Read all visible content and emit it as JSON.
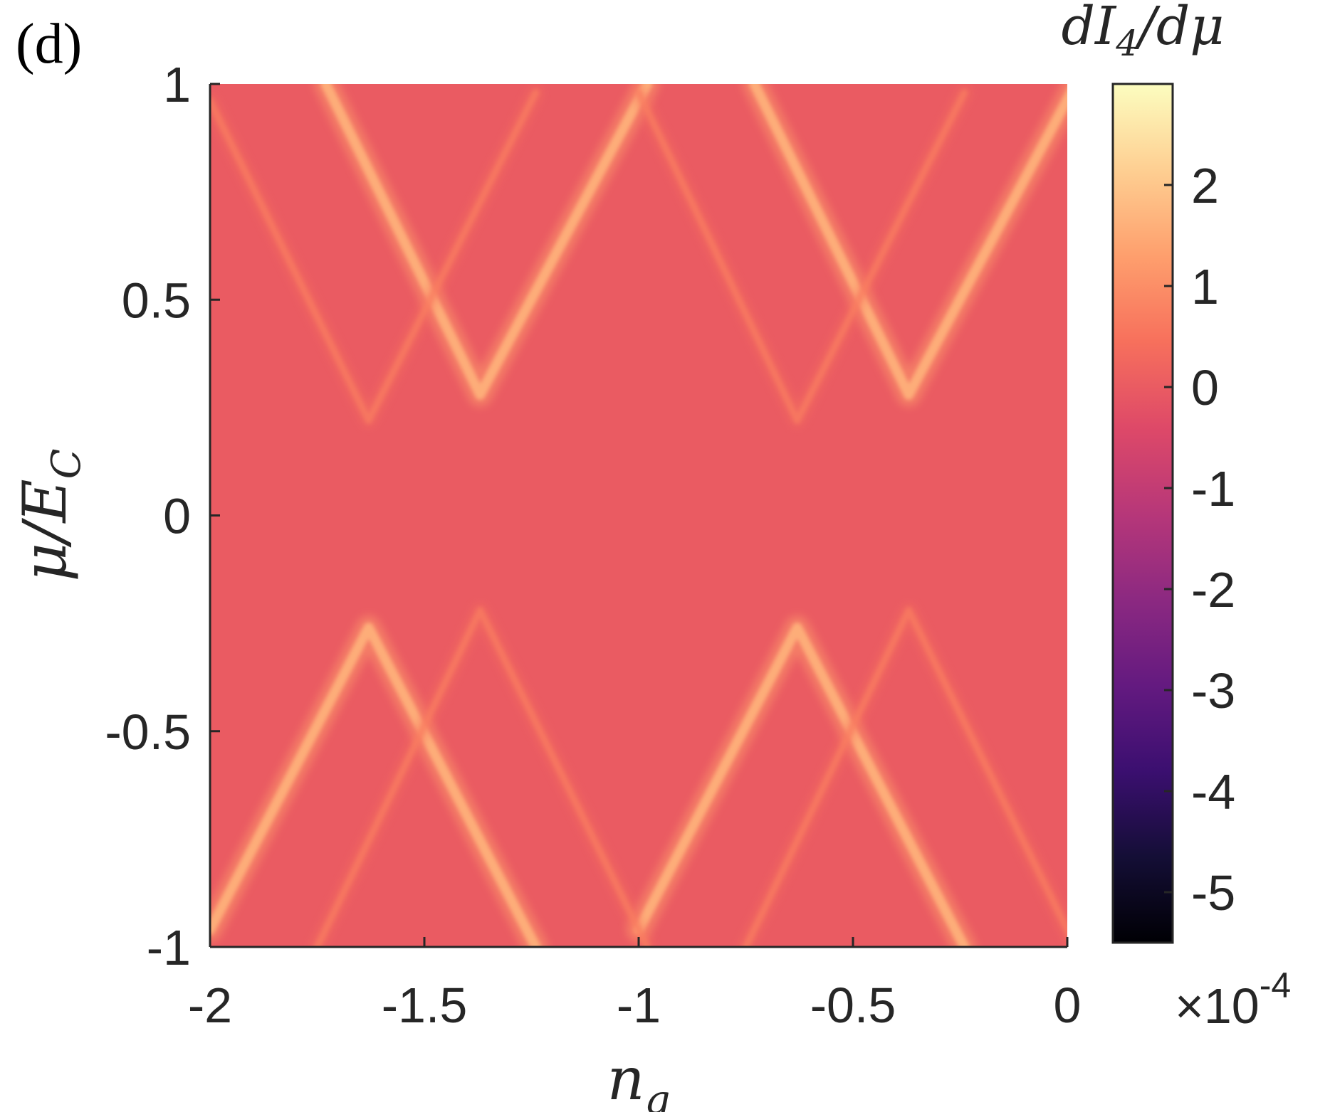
{
  "chart_data": {
    "type": "heatmap",
    "panel_label": "(d)",
    "xlabel": "n",
    "xlabel_sub": "g",
    "ylabel": "μ/E",
    "ylabel_sub": "C",
    "colorbar_title_parts": [
      "dI",
      "4",
      "/dμ"
    ],
    "colorbar_exponent": "×10",
    "colorbar_exponent_power": "-4",
    "xlim": [
      -2,
      0
    ],
    "ylim": [
      -1,
      1
    ],
    "clim": [
      -5.5,
      3
    ],
    "xticks": [
      -2,
      -1.5,
      -1,
      -0.5,
      0
    ],
    "xtick_labels": [
      "-2",
      "-1.5",
      "-1",
      "-0.5",
      "0"
    ],
    "yticks": [
      -1,
      -0.5,
      0,
      0.5,
      1
    ],
    "ytick_labels": [
      "-1",
      "-0.5",
      "0",
      "0.5",
      "1"
    ],
    "cticks": [
      -5,
      -4,
      -3,
      -2,
      -1,
      0,
      1,
      2
    ],
    "ctick_labels": [
      "-5",
      "-4",
      "-3",
      "-2",
      "-1",
      "0",
      "1",
      "2"
    ],
    "colormap": "magma",
    "background_value": 0,
    "features": [
      {
        "name": "upper-V-1",
        "points": [
          [
            -1.73,
            1.0
          ],
          [
            -1.37,
            0.28
          ],
          [
            -0.98,
            1.0
          ]
        ],
        "value": 1.6
      },
      {
        "name": "upper-V-2",
        "points": [
          [
            -0.73,
            1.0
          ],
          [
            -0.37,
            0.28
          ],
          [
            0.02,
            1.0
          ]
        ],
        "value": 1.6
      },
      {
        "name": "lower-Lambda-1",
        "points": [
          [
            -2.0,
            -0.96
          ],
          [
            -1.63,
            -0.26
          ],
          [
            -1.24,
            -1.0
          ]
        ],
        "value": 1.6
      },
      {
        "name": "lower-Lambda-2",
        "points": [
          [
            -1.0,
            -0.96
          ],
          [
            -0.63,
            -0.26
          ],
          [
            -0.24,
            -1.0
          ]
        ],
        "value": 1.6
      },
      {
        "name": "upper-V-faint-1",
        "points": [
          [
            -2.0,
            0.96
          ],
          [
            -1.63,
            0.22
          ],
          [
            -1.24,
            0.98
          ]
        ],
        "value": 0.7
      },
      {
        "name": "upper-V-faint-2",
        "points": [
          [
            -1.0,
            0.98
          ],
          [
            -0.63,
            0.22
          ],
          [
            -0.24,
            0.98
          ]
        ],
        "value": 0.7
      },
      {
        "name": "lower-Lambda-faint-1",
        "points": [
          [
            -1.75,
            -1.0
          ],
          [
            -1.37,
            -0.22
          ],
          [
            -0.98,
            -1.0
          ]
        ],
        "value": 0.7
      },
      {
        "name": "lower-Lambda-faint-2",
        "points": [
          [
            -0.75,
            -1.0
          ],
          [
            -0.37,
            -0.22
          ],
          [
            0.02,
            -1.0
          ]
        ],
        "value": 0.7
      }
    ]
  }
}
